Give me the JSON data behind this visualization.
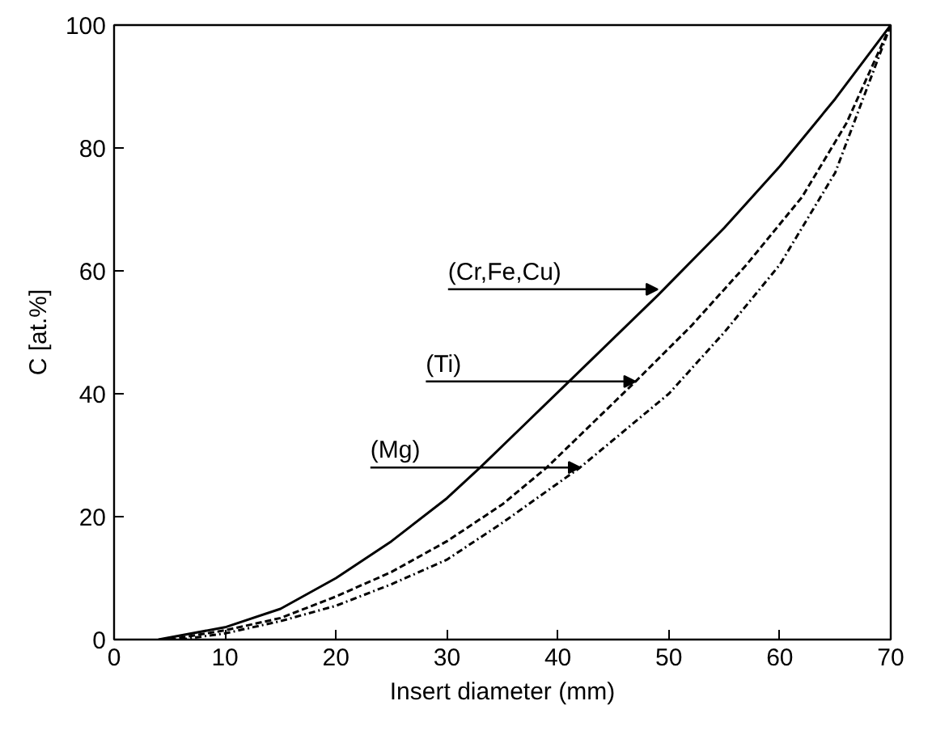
{
  "chart_data": {
    "type": "line",
    "xlabel": "Insert diameter (mm)",
    "ylabel": "C [at.%]",
    "xlim": [
      0,
      70
    ],
    "ylim": [
      0,
      100
    ],
    "xticks": [
      0,
      10,
      20,
      30,
      40,
      50,
      60,
      70
    ],
    "yticks": [
      0,
      20,
      40,
      60,
      80,
      100
    ],
    "grid": false,
    "marker": "none",
    "series": [
      {
        "color": "#000000",
        "line_style": "solid",
        "x": [
          4,
          10,
          15,
          20,
          25,
          30,
          33,
          37,
          41,
          45,
          49,
          55,
          60,
          65,
          70
        ],
        "values": [
          0,
          2,
          5,
          10,
          16,
          23,
          28,
          35,
          42,
          49,
          56,
          67,
          77,
          88,
          100
        ]
      },
      {
        "color": "#000000",
        "line_style": "dashed",
        "x": [
          5,
          10,
          15,
          20,
          25,
          30,
          35,
          39,
          43,
          47,
          52,
          57,
          62,
          66,
          70
        ],
        "values": [
          0,
          1.5,
          3.5,
          7,
          11,
          16,
          22,
          28,
          35,
          42,
          51,
          61,
          72,
          84,
          100
        ]
      },
      {
        "color": "#000000",
        "line_style": "dotted",
        "x": [
          6,
          10,
          15,
          20,
          25,
          30,
          35,
          42,
          46,
          50,
          55,
          60,
          65,
          70
        ],
        "values": [
          0,
          1,
          3,
          5.5,
          9,
          13,
          19,
          28,
          34,
          40,
          50,
          61,
          76,
          100
        ]
      }
    ],
    "annotations": [
      {
        "text": "(Cr,Fe,Cu)",
        "x": 49,
        "y": 57
      },
      {
        "text": "(Ti)",
        "x": 47,
        "y": 42
      },
      {
        "text": "(Mg)",
        "x": 42,
        "y": 28
      }
    ]
  }
}
